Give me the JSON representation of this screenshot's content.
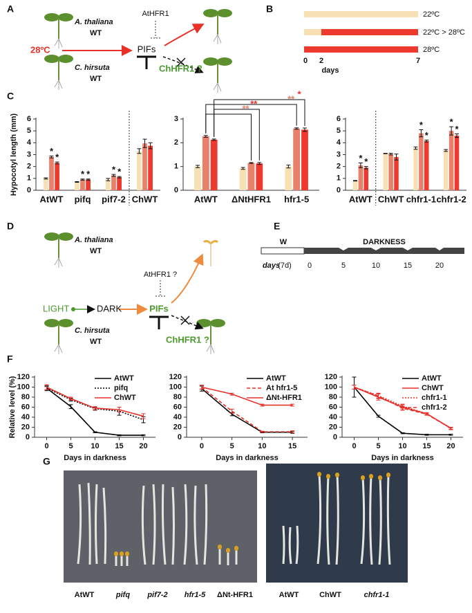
{
  "panel_labels": [
    "A",
    "B",
    "C",
    "D",
    "E",
    "F",
    "G"
  ],
  "diagram_a": {
    "top_plant": "A. thaliana",
    "top_plant_type": "WT",
    "regulator": "AtHFR1",
    "stimulus": "28ºC",
    "factor": "PIFs",
    "bottom_plant": "C. hirsuta",
    "bottom_plant_type": "WT",
    "inhibitor": "ChHFR1 ?"
  },
  "diagram_b": {
    "ticks": [
      "0",
      "2",
      "7"
    ],
    "axis_label": "days"
  },
  "diagram_d": {
    "top_plant": "A. thaliana",
    "top_plant_type": "WT",
    "regulator": "AtHFR1 ?",
    "start": "LIGHT",
    "middle": "DARK",
    "factor": "PIFs",
    "bottom_plant": "C. hirsuta",
    "bottom_plant_type": "WT",
    "inhibitor": "ChHFR1 ?"
  },
  "diagram_e": {
    "light_phase": "W",
    "dark_phase": "DARKNESS",
    "axis_label": "days",
    "light_duration": "(7d)",
    "ticks": [
      "0",
      "5",
      "10",
      "15",
      "20"
    ]
  },
  "photos_g": {
    "left_labels": [
      "AtWT",
      "pifq",
      "pif7-2",
      "hfr1-5",
      "ΔNt-HFR1"
    ],
    "right_labels": [
      "AtWT",
      "ChWT",
      "chfr1-1"
    ]
  },
  "chart_data": [
    {
      "type": "bar",
      "ylabel": "Hypocotyl length (mm)",
      "categories": [
        "AtWT",
        "pifq",
        "pif7-2",
        "ChWT"
      ],
      "ylim": [
        0,
        6
      ],
      "yticks": [
        0,
        1,
        2,
        3,
        4,
        5,
        6
      ],
      "series": [
        {
          "name": "22ºC",
          "color": "#f6e0b4",
          "values": [
            1.0,
            0.7,
            0.9,
            3.3
          ],
          "errors": [
            0.05,
            0.03,
            0.1,
            0.2
          ]
        },
        {
          "name": "22ºC > 28ºC",
          "color": "#e8806a",
          "values": [
            2.8,
            0.9,
            1.25,
            3.95
          ],
          "errors": [
            0.08,
            0.05,
            0.08,
            0.35
          ],
          "sig": [
            "*",
            "*",
            "*",
            null
          ]
        },
        {
          "name": "28ºC",
          "color": "#ee3a2e",
          "values": [
            2.3,
            0.9,
            1.1,
            3.75
          ],
          "errors": [
            0.08,
            0.05,
            0.06,
            0.25
          ],
          "sig": [
            "*",
            "*",
            "*",
            null
          ]
        }
      ]
    },
    {
      "type": "bar",
      "categories": [
        "AtWT",
        "ΔNtHFR1",
        "hfr1-5"
      ],
      "ylim": [
        0,
        3
      ],
      "yticks": [
        0,
        1,
        2,
        3
      ],
      "series": [
        {
          "color": "#f6e0b4",
          "values": [
            1.0,
            0.92,
            1.0
          ],
          "errors": [
            0.05,
            0.04,
            0.06
          ]
        },
        {
          "color": "#e8806a",
          "values": [
            2.27,
            1.15,
            2.6
          ],
          "errors": [
            0.04,
            0.02,
            0.03
          ]
        },
        {
          "color": "#ee3a2e",
          "values": [
            2.13,
            1.13,
            2.55
          ],
          "errors": [
            0.03,
            0.04,
            0.07
          ]
        }
      ],
      "comparisons": [
        {
          "text": "**",
          "color": "#e8806a"
        },
        {
          "text": "**",
          "color": "#e8312a"
        },
        {
          "text": "**",
          "color": "#e8806a"
        },
        {
          "text": "*",
          "color": "#e8312a"
        }
      ]
    },
    {
      "type": "bar",
      "categories": [
        "AtWT",
        "ChWT",
        "chfr1-1",
        "chfr1-2"
      ],
      "ylim": [
        0,
        6
      ],
      "yticks": [
        0,
        1,
        2,
        3,
        4,
        5,
        6
      ],
      "series": [
        {
          "color": "#f6e0b4",
          "values": [
            0.8,
            3.1,
            3.55,
            3.35
          ],
          "errors": [
            0.02,
            0.02,
            0.1,
            0.08
          ]
        },
        {
          "color": "#e8806a",
          "values": [
            2.1,
            3.05,
            4.8,
            5.0
          ],
          "errors": [
            0.2,
            0.07,
            0.3,
            0.35
          ],
          "sig": [
            "*",
            null,
            "*",
            "*"
          ]
        },
        {
          "color": "#ee3a2e",
          "values": [
            1.9,
            2.8,
            4.15,
            4.6
          ],
          "errors": [
            0.1,
            0.25,
            0.08,
            0.15
          ],
          "sig": [
            "*",
            null,
            "*",
            "*"
          ]
        }
      ]
    },
    {
      "type": "line",
      "ylabel": "Relative level (%)",
      "xlabel": "Days in darkness",
      "legend": "upper right",
      "x": [
        0,
        5,
        10,
        15,
        20
      ],
      "xlim": [
        -2.5,
        22.5
      ],
      "xticks": [
        0,
        5,
        10,
        15,
        20
      ],
      "ylim": [
        0,
        120
      ],
      "yticks": [
        0,
        20,
        40,
        60,
        80,
        100,
        120
      ],
      "series": [
        {
          "name": "AtWT",
          "color": "#000000",
          "dash": "solid",
          "values": [
            98,
            61,
            10,
            4,
            4
          ],
          "errors": [
            5,
            4,
            1,
            1,
            1
          ]
        },
        {
          "name": "pifq",
          "color": "#000000",
          "dash": "dotted",
          "values": [
            98,
            75,
            57,
            52,
            35
          ],
          "errors": [
            3,
            3,
            3,
            8,
            6
          ]
        },
        {
          "name": "ChWT",
          "color": "#e8312a",
          "dash": "solid",
          "values": [
            100,
            77,
            58,
            55,
            42
          ],
          "errors": [
            5,
            3,
            3,
            5,
            5
          ]
        }
      ]
    },
    {
      "type": "line",
      "xlabel": "Days in darkness",
      "legend": "upper right",
      "x": [
        0,
        5,
        10,
        15
      ],
      "xlim": [
        -2.5,
        17.5
      ],
      "xticks": [
        0,
        5,
        10,
        15
      ],
      "ylim": [
        0,
        120
      ],
      "yticks": [
        0,
        20,
        40,
        60,
        80,
        100,
        120
      ],
      "series": [
        {
          "name": "AtWT",
          "color": "#000000",
          "dash": "solid",
          "values": [
            97,
            46,
            10,
            10
          ],
          "errors": [
            5,
            3,
            1,
            2
          ]
        },
        {
          "name": "At hfr1-5",
          "color": "#e8312a",
          "dash": "dashed",
          "values": [
            100,
            52,
            11,
            11
          ],
          "errors": [
            4,
            4,
            1,
            2
          ]
        },
        {
          "name": "ΔNt-HFR1",
          "color": "#e8312a",
          "dash": "solid",
          "values": [
            100,
            86,
            64,
            64
          ],
          "errors": [
            4,
            2,
            2,
            2
          ]
        }
      ]
    },
    {
      "type": "line",
      "xlabel": "Days in darkness",
      "legend": "upper right",
      "x": [
        0,
        5,
        10,
        15,
        20
      ],
      "xlim": [
        -2.5,
        22.5
      ],
      "xticks": [
        0,
        5,
        10,
        15,
        20
      ],
      "ylim": [
        0,
        120
      ],
      "yticks": [
        0,
        20,
        40,
        60,
        80,
        100,
        120
      ],
      "series": [
        {
          "name": "AtWT",
          "color": "#000000",
          "dash": "solid",
          "values": [
            100,
            42,
            8,
            5,
            5
          ],
          "errors": [
            20,
            2,
            1,
            1,
            1
          ]
        },
        {
          "name": "ChWT",
          "color": "#e8312a",
          "dash": "solid",
          "values": [
            100,
            80,
            60,
            47,
            18
          ],
          "errors": [
            4,
            6,
            5,
            2,
            2
          ]
        },
        {
          "name": "chfr1-1",
          "color": "#e8312a",
          "dash": "dotted",
          "values": [
            100,
            83,
            62,
            47,
            17
          ],
          "errors": [
            4,
            5,
            4,
            2,
            2
          ]
        },
        {
          "name": "chfr1-2",
          "color": "#e8312a",
          "dash": "dashed",
          "values": [
            100,
            82,
            58,
            46,
            18
          ],
          "errors": [
            4,
            5,
            4,
            2,
            2
          ]
        }
      ]
    }
  ]
}
